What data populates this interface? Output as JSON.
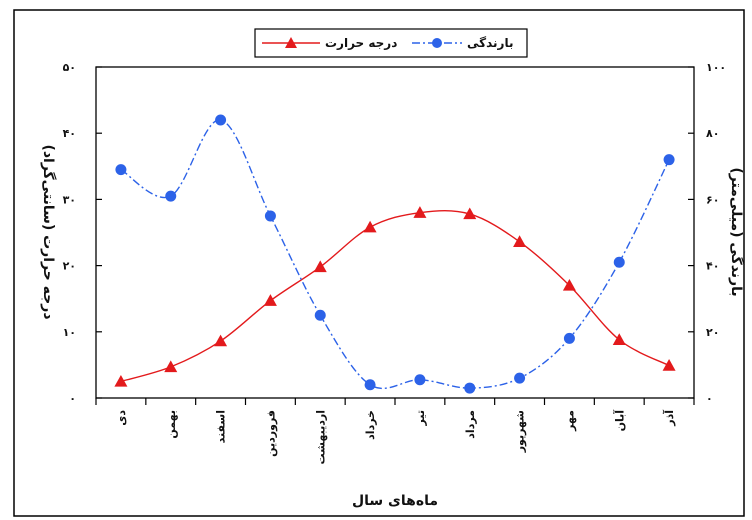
{
  "chart_data": {
    "type": "line",
    "categories": [
      "دی",
      "بهمن",
      "اسفند",
      "فروردین",
      "اردیبهشت",
      "خرداد",
      "تیر",
      "مرداد",
      "شهریور",
      "مهر",
      "آبان",
      "آذر"
    ],
    "xlabel": "ماه‌های سال",
    "ylabel_left": "درجه حرارت (سانتی‌گراد)",
    "ylabel_right": "بارندگی (میلی‌متر)",
    "ylim_left": [
      0,
      50
    ],
    "ylim_right": [
      0,
      100
    ],
    "yticks_left": [
      "۰",
      "۱۰",
      "۲۰",
      "۳۰",
      "۴۰",
      "۵۰"
    ],
    "yticks_right": [
      "۰",
      "۲۰",
      "۴۰",
      "۶۰",
      "۸۰",
      "۱۰۰"
    ],
    "grid": false,
    "legend_position": "top-center",
    "series": [
      {
        "name": "درجه حرارت",
        "axis": "left",
        "color": "#e31a1c",
        "marker": "triangle",
        "line_style": "solid",
        "values": [
          2.5,
          4.7,
          8.6,
          14.7,
          19.8,
          25.8,
          28.0,
          27.8,
          23.6,
          17.0,
          8.8,
          4.9
        ]
      },
      {
        "name": "بارندگی",
        "axis": "right",
        "color": "#2c62e8",
        "marker": "circle",
        "line_style": "dashdot",
        "values": [
          69.0,
          61.0,
          84.0,
          55.0,
          25.0,
          4.0,
          5.5,
          3.0,
          6.0,
          18.0,
          41.0,
          72.0
        ]
      }
    ]
  }
}
